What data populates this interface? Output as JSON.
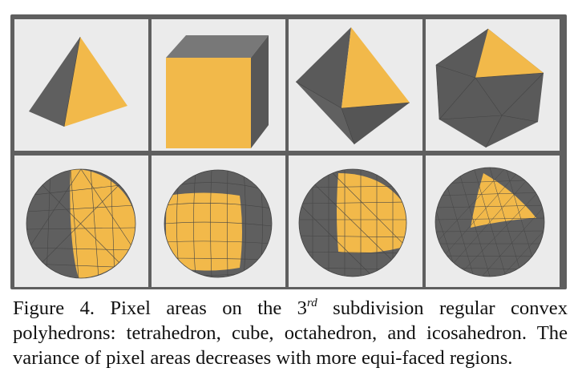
{
  "figure": {
    "label": "Figure 4.",
    "caption_part1": " Pixel areas on the 3",
    "caption_sup": "rd",
    "caption_part2": " subdivision regular convex polyhedrons: tetrahedron, cube, octahedron, and icosahedron. The variance of pixel areas decreases with more equi-faced regions."
  },
  "colors": {
    "face": "#f2b94a",
    "gray": "#5e5e5e",
    "panel": "#5f5f5f",
    "cell_bg": "#ebebeb"
  },
  "panels": {
    "row1": [
      "tetrahedron-icon",
      "cube-icon",
      "octahedron-icon",
      "icosahedron-icon"
    ],
    "row2": [
      "subdivided-tetrahedron-sphere",
      "subdivided-cube-sphere",
      "subdivided-octahedron-sphere",
      "subdivided-icosahedron-sphere"
    ]
  }
}
